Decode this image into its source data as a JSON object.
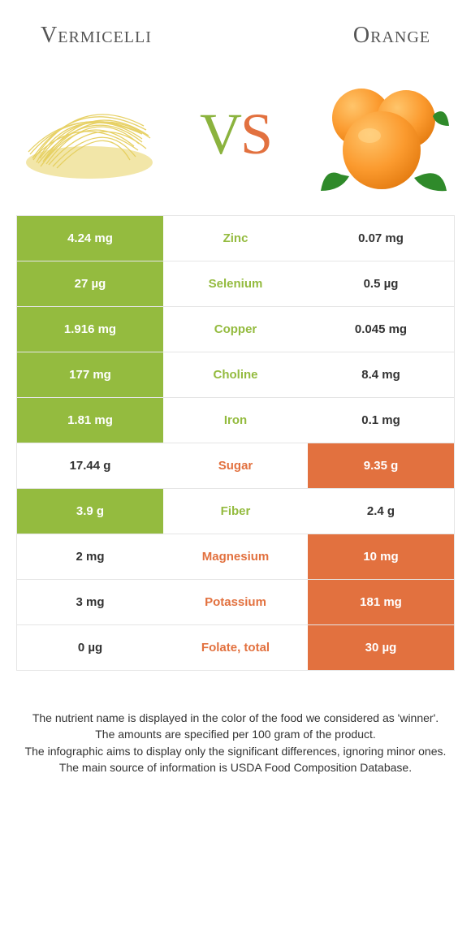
{
  "header": {
    "left_title": "Vermicelli",
    "right_title": "Orange"
  },
  "vs": {
    "v": "V",
    "s": "S"
  },
  "colors": {
    "green": "#94bb3f",
    "orange": "#e2713f",
    "border": "#e5e5e5",
    "text": "#333333",
    "bg": "#ffffff"
  },
  "comparison": {
    "type": "table",
    "left_color": "#94bb3f",
    "right_color": "#e2713f",
    "rows": [
      {
        "left": "4.24 mg",
        "label": "Zinc",
        "right": "0.07 mg",
        "winner": "left"
      },
      {
        "left": "27 µg",
        "label": "Selenium",
        "right": "0.5 µg",
        "winner": "left"
      },
      {
        "left": "1.916 mg",
        "label": "Copper",
        "right": "0.045 mg",
        "winner": "left"
      },
      {
        "left": "177 mg",
        "label": "Choline",
        "right": "8.4 mg",
        "winner": "left"
      },
      {
        "left": "1.81 mg",
        "label": "Iron",
        "right": "0.1 mg",
        "winner": "left"
      },
      {
        "left": "17.44 g",
        "label": "Sugar",
        "right": "9.35 g",
        "winner": "right"
      },
      {
        "left": "3.9 g",
        "label": "Fiber",
        "right": "2.4 g",
        "winner": "left"
      },
      {
        "left": "2 mg",
        "label": "Magnesium",
        "right": "10 mg",
        "winner": "right"
      },
      {
        "left": "3 mg",
        "label": "Potassium",
        "right": "181 mg",
        "winner": "right"
      },
      {
        "left": "0 µg",
        "label": "Folate, total",
        "right": "30 µg",
        "winner": "right"
      }
    ]
  },
  "footer": {
    "line1": "The nutrient name is displayed in the color of the food we considered as 'winner'.",
    "line2": "The amounts are specified per 100 gram of the product.",
    "line3": "The infographic aims to display only the significant differences, ignoring minor ones.",
    "line4": "The main source of information is USDA Food Composition Database."
  }
}
